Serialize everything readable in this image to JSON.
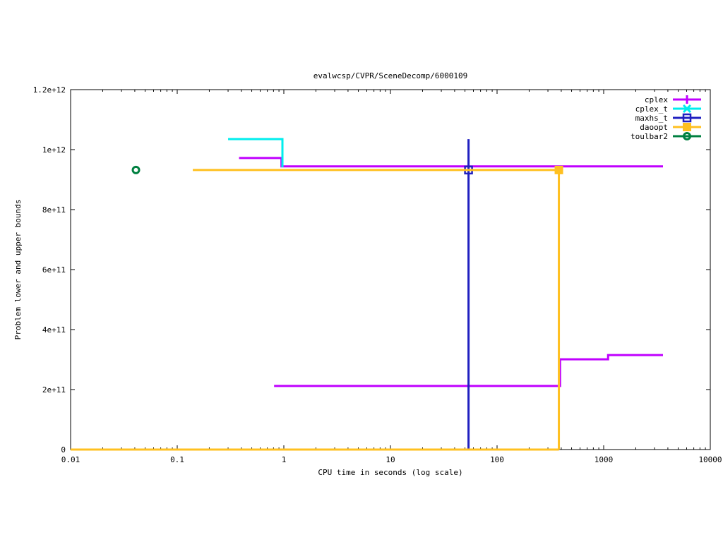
{
  "chart_data": {
    "type": "line",
    "title": "evalwcsp/CVPR/SceneDecomp/6000109",
    "xlabel": "CPU time in seconds (log scale)",
    "ylabel": "Problem lower and upper bounds",
    "xscale": "log",
    "xlim": [
      0.01,
      10000
    ],
    "ylim": [
      0,
      1200000000000.0
    ],
    "xticks": [
      0.01,
      0.1,
      1,
      10,
      100,
      1000,
      10000
    ],
    "xtick_labels": [
      "0.01",
      "0.1",
      "1",
      "10",
      "100",
      "1000",
      "10000"
    ],
    "yticks": [
      0,
      200000000000.0,
      400000000000.0,
      600000000000.0,
      800000000000.0,
      1000000000000.0,
      1200000000000.0
    ],
    "ytick_labels": [
      "0",
      "2e+11",
      "4e+11",
      "6e+11",
      "8e+11",
      "1e+12",
      "1.2e+12"
    ],
    "grid": false,
    "legend_position": "top-right",
    "series": [
      {
        "name": "cplex",
        "color": "#c000ff",
        "marker": "plus",
        "segments": [
          [
            [
              0.38,
              972000000000.0
            ],
            [
              0.95,
              972000000000.0
            ],
            [
              0.95,
              944000000000.0
            ],
            [
              3600,
              944000000000.0
            ]
          ],
          [
            [
              0.81,
              212000000000.0
            ],
            [
              390,
              212000000000.0
            ],
            [
              390,
              301000000000.0
            ],
            [
              1100,
              301000000000.0
            ],
            [
              1100,
              315000000000.0
            ],
            [
              3600,
              315000000000.0
            ]
          ]
        ]
      },
      {
        "name": "cplex_t",
        "color": "#00eeee",
        "marker": "cross",
        "segments": [
          [
            [
              0.3,
              1035000000000.0
            ],
            [
              0.97,
              1035000000000.0
            ],
            [
              0.97,
              941000000000.0
            ]
          ]
        ]
      },
      {
        "name": "maxhs_t",
        "color": "#2020c0",
        "marker": "square",
        "segments": [
          [
            [
              54,
              0
            ],
            [
              54,
              1035000000000.0
            ]
          ]
        ],
        "points": [
          [
            54,
            932000000000.0
          ]
        ]
      },
      {
        "name": "daoopt",
        "color": "#ffc020",
        "marker": "filled-square",
        "segments": [
          [
            [
              0.14,
              932000000000.0
            ],
            [
              380,
              932000000000.0
            ],
            [
              380,
              0
            ]
          ],
          [
            [
              0.01,
              0
            ],
            [
              380,
              0
            ]
          ]
        ],
        "points": [
          [
            380,
            932000000000.0
          ]
        ]
      },
      {
        "name": "toulbar2",
        "color": "#008040",
        "marker": "circle",
        "segments": [],
        "points": [
          [
            0.041,
            932000000000.0
          ]
        ]
      }
    ]
  }
}
